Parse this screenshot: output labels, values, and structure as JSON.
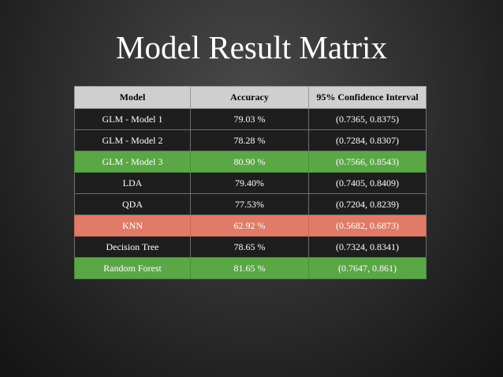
{
  "slide": {
    "title": "Model Result Matrix"
  },
  "table": {
    "headers": [
      "Model",
      "Accuracy",
      "95% Confidence Interval"
    ],
    "rows": [
      {
        "model": "GLM - Model 1",
        "accuracy": "79.03 %",
        "ci": "(0.7365, 0.8375)",
        "highlight": "none"
      },
      {
        "model": "GLM - Model 2",
        "accuracy": "78.28 %",
        "ci": "(0.7284, 0.8307)",
        "highlight": "none"
      },
      {
        "model": "GLM - Model 3",
        "accuracy": "80.90 %",
        "ci": "(0.7566, 0.8543)",
        "highlight": "green"
      },
      {
        "model": "LDA",
        "accuracy": "79.40%",
        "ci": "(0.7405, 0.8409)",
        "highlight": "none"
      },
      {
        "model": "QDA",
        "accuracy": "77.53%",
        "ci": "(0.7204, 0.8239)",
        "highlight": "none"
      },
      {
        "model": "KNN",
        "accuracy": "62.92 %",
        "ci": "(0.5682, 0.6873)",
        "highlight": "red"
      },
      {
        "model": "Decision Tree",
        "accuracy": "78.65 %",
        "ci": "(0.7324, 0.8341)",
        "highlight": "none"
      },
      {
        "model": "Random Forest",
        "accuracy": "81.65 %",
        "ci": "(0.7647, 0.861)",
        "highlight": "green"
      }
    ]
  },
  "colors": {
    "header_bg": "#cfcfcf",
    "row_bg": "#1e1e1e",
    "highlight_green": "#5aa746",
    "highlight_red": "#e07b68",
    "text_light": "#ffffff",
    "text_dark": "#000000"
  }
}
